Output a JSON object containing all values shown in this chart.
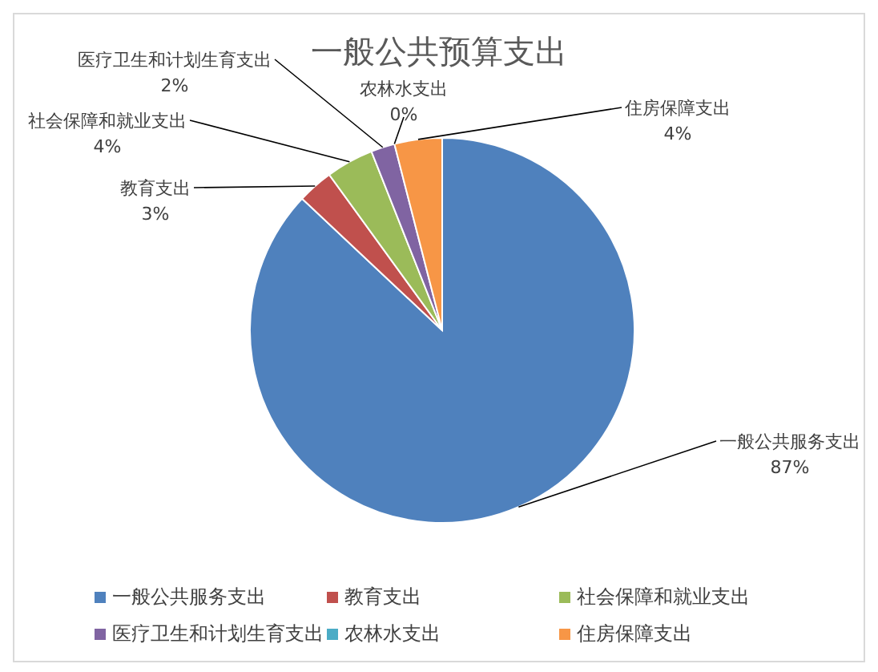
{
  "chart_data": {
    "type": "pie",
    "title": "一般公共预算支出",
    "categories": [
      "一般公共服务支出",
      "教育支出",
      "社会保障和就业支出",
      "医疗卫生和计划生育支出",
      "农林水支出",
      "住房保障支出"
    ],
    "values": [
      87,
      3,
      4,
      2,
      0,
      4
    ],
    "colors": [
      "#4f81bd",
      "#c0504d",
      "#9bbb59",
      "#8064a2",
      "#4bacc6",
      "#f79646"
    ],
    "value_labels": [
      "87%",
      "3%",
      "4%",
      "2%",
      "0%",
      "4%"
    ],
    "legend": "bottom"
  }
}
